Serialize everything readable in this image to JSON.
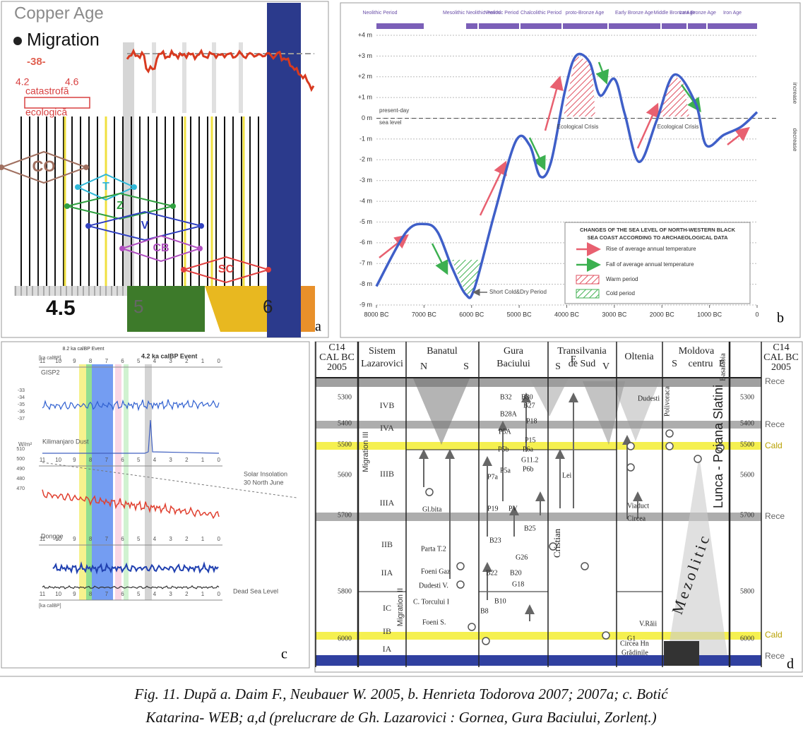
{
  "panels": {
    "a": {
      "label": "a",
      "title": "Copper Age",
      "legend": "Migration",
      "marker": "-38-",
      "dates": [
        "4.2",
        "4.6"
      ],
      "note": [
        "catastrofă",
        "ecologică"
      ],
      "groups": [
        "CO",
        "T",
        "Z",
        "V",
        "CB",
        "SC"
      ],
      "axis": [
        "4.5",
        "5",
        "6"
      ]
    },
    "b": {
      "label": "b",
      "type": "line",
      "periods": [
        "Neolithic Period",
        "Mesolithic Neolithic Period",
        "Neolithic Period",
        "Chalcolithic Period",
        "proto-Bronze Age",
        "Early Bronze Age",
        "Middle Bronze Age",
        "Late Bronze Age",
        "Iron Age"
      ],
      "x": [
        8000,
        7380,
        6980,
        6710,
        6410,
        6120,
        5940,
        5520,
        5070,
        4780,
        4560,
        4330,
        4040,
        3810,
        3520,
        3300,
        3000,
        2780,
        2480,
        2110,
        1740,
        1290,
        1070,
        700,
        330,
        0
      ],
      "series": [
        {
          "color": "#3f5fc8",
          "values": [
            -8.1,
            -5.5,
            -5.1,
            -5.5,
            -7.2,
            -8.5,
            -8.2,
            -4.6,
            -1.1,
            -1.3,
            -2.8,
            -2.1,
            1.3,
            3.0,
            2.7,
            1.1,
            1.9,
            0.2,
            -2.1,
            -0.1,
            2.1,
            0.7,
            -1.3,
            -0.8,
            -0.4,
            0.3
          ]
        }
      ],
      "xlim": [
        8000,
        0
      ],
      "ylim": [
        -9,
        4
      ],
      "xticks": [
        {
          "value": 8000,
          "label": "8000 BC"
        },
        {
          "value": 7000,
          "label": "7000 BC"
        },
        {
          "value": 6000,
          "label": "6000 BC"
        },
        {
          "value": 5000,
          "label": "5000 BC"
        },
        {
          "value": 4000,
          "label": "4000 BC"
        },
        {
          "value": 3000,
          "label": "3000 BC"
        },
        {
          "value": 2000,
          "label": "2000 BC"
        },
        {
          "value": 1000,
          "label": "1000 BC"
        },
        0
      ],
      "yticks": [
        {
          "value": 4,
          "label": "+4 m"
        },
        {
          "value": 3,
          "label": "+3 m"
        },
        {
          "value": 2,
          "label": "+2 m"
        },
        {
          "value": 1,
          "label": "+1 m"
        },
        {
          "value": 0,
          "label": "0 m"
        },
        {
          "value": -1,
          "label": "-1 m"
        },
        {
          "value": -2,
          "label": "-2 m"
        },
        {
          "value": -3,
          "label": "-3 m"
        },
        {
          "value": -4,
          "label": "-4 m"
        },
        {
          "value": -5,
          "label": "-5 m"
        },
        {
          "value": -6,
          "label": "-6 m"
        },
        {
          "value": -7,
          "label": "-7 m"
        },
        {
          "value": -8,
          "label": "-8 m"
        },
        {
          "value": -9,
          "label": "-9 m"
        }
      ],
      "grid": true,
      "annotations": [
        "present-day",
        "sea level",
        "Ecological Crisis",
        "Ecological Crisis",
        "Short Cold&Dry Period",
        "increase",
        "decrease"
      ],
      "legend": {
        "title": [
          "CHANGES OF THE SEA LEVEL OF NORTH-WESTERN BLACK",
          "SEA COAST ACCORDING TO ARCHAEOLOGICAL DATA"
        ],
        "items": [
          "Rise of average annual temperature",
          "Fall of average annual temperature",
          "Warm period",
          "Cold period"
        ]
      }
    },
    "c": {
      "label": "c",
      "axis_title": "[ka calBP]",
      "events": [
        "8.2 ka calBP Event",
        "4.2 ka calBP Event"
      ],
      "axis": [
        "11",
        "10",
        "9",
        "8",
        "7",
        "6",
        "5",
        "4",
        "3",
        "2",
        "1",
        "0"
      ],
      "records": [
        "GISP2",
        "Kilimanjaro Dust",
        "Solar Insolation",
        "30 North June",
        "Dongge",
        "Dead Sea Level"
      ],
      "unit": "W/m²",
      "gisp_ticks": [
        "-33",
        "-34",
        "-35",
        "-36",
        "-37"
      ],
      "solar_ticks": [
        "510",
        "500",
        "490",
        "480",
        "470"
      ]
    },
    "d": {
      "label": "d",
      "header": [
        "C14",
        "CAL BC",
        "2005",
        "Sistem",
        "Lazarovici",
        "Banatul",
        "N",
        "S",
        "Gura",
        "Baciului",
        "Transilvania",
        "de Sud",
        "S",
        "E",
        "V",
        "Oltenia",
        "Moldova",
        "S",
        "centru",
        "E",
        "Basarabia",
        "C14",
        "CAL BC",
        "2005"
      ],
      "years": [
        "5300",
        "5400",
        "5500",
        "5600",
        "5700",
        "5800",
        "6000"
      ],
      "climate": [
        "Rece",
        "Rece",
        "Cald",
        "Rece",
        "Cald",
        "Rece"
      ],
      "phases": [
        "IVB",
        "IVA",
        "IIIB",
        "IIIA",
        "IIB",
        "IIA",
        "IC",
        "IB",
        "IA"
      ],
      "migrations": [
        "Migration III",
        "Migration II"
      ],
      "sites": [
        "B32",
        "B30",
        "B27",
        "B28A",
        "P18",
        "P5A",
        "P15",
        "P5b",
        "P6a",
        "G11.2",
        "P7a",
        "P5a",
        "P6b",
        "P19",
        "PV",
        "B25",
        "B23",
        "G26",
        "B22",
        "B20",
        "G18",
        "B10",
        "B8",
        "Gl.bita",
        "Parta T.2",
        "Foeni Gaz",
        "Dudesti V.",
        "C. Torcului I",
        "Foeni S.",
        "Dudesti",
        "Lei",
        "Viaduct",
        "Circea",
        "V.Răii",
        "G1",
        "Grădinile",
        "Circea Hn",
        "Cristian",
        "Polivoraca",
        "Lunca - Poiana Slatini",
        "Mezolitic"
      ]
    }
  },
  "caption": [
    "Fig. 11. După a. Daim F., Neubauer W. 2005, b. Henrieta Todorova 2007; 2007a; c. Botić",
    "Katarina- WEB; a,d (prelucrare de Gh. Lazarovici : Gornea, Gura Baciului, Zorlenț.)"
  ]
}
